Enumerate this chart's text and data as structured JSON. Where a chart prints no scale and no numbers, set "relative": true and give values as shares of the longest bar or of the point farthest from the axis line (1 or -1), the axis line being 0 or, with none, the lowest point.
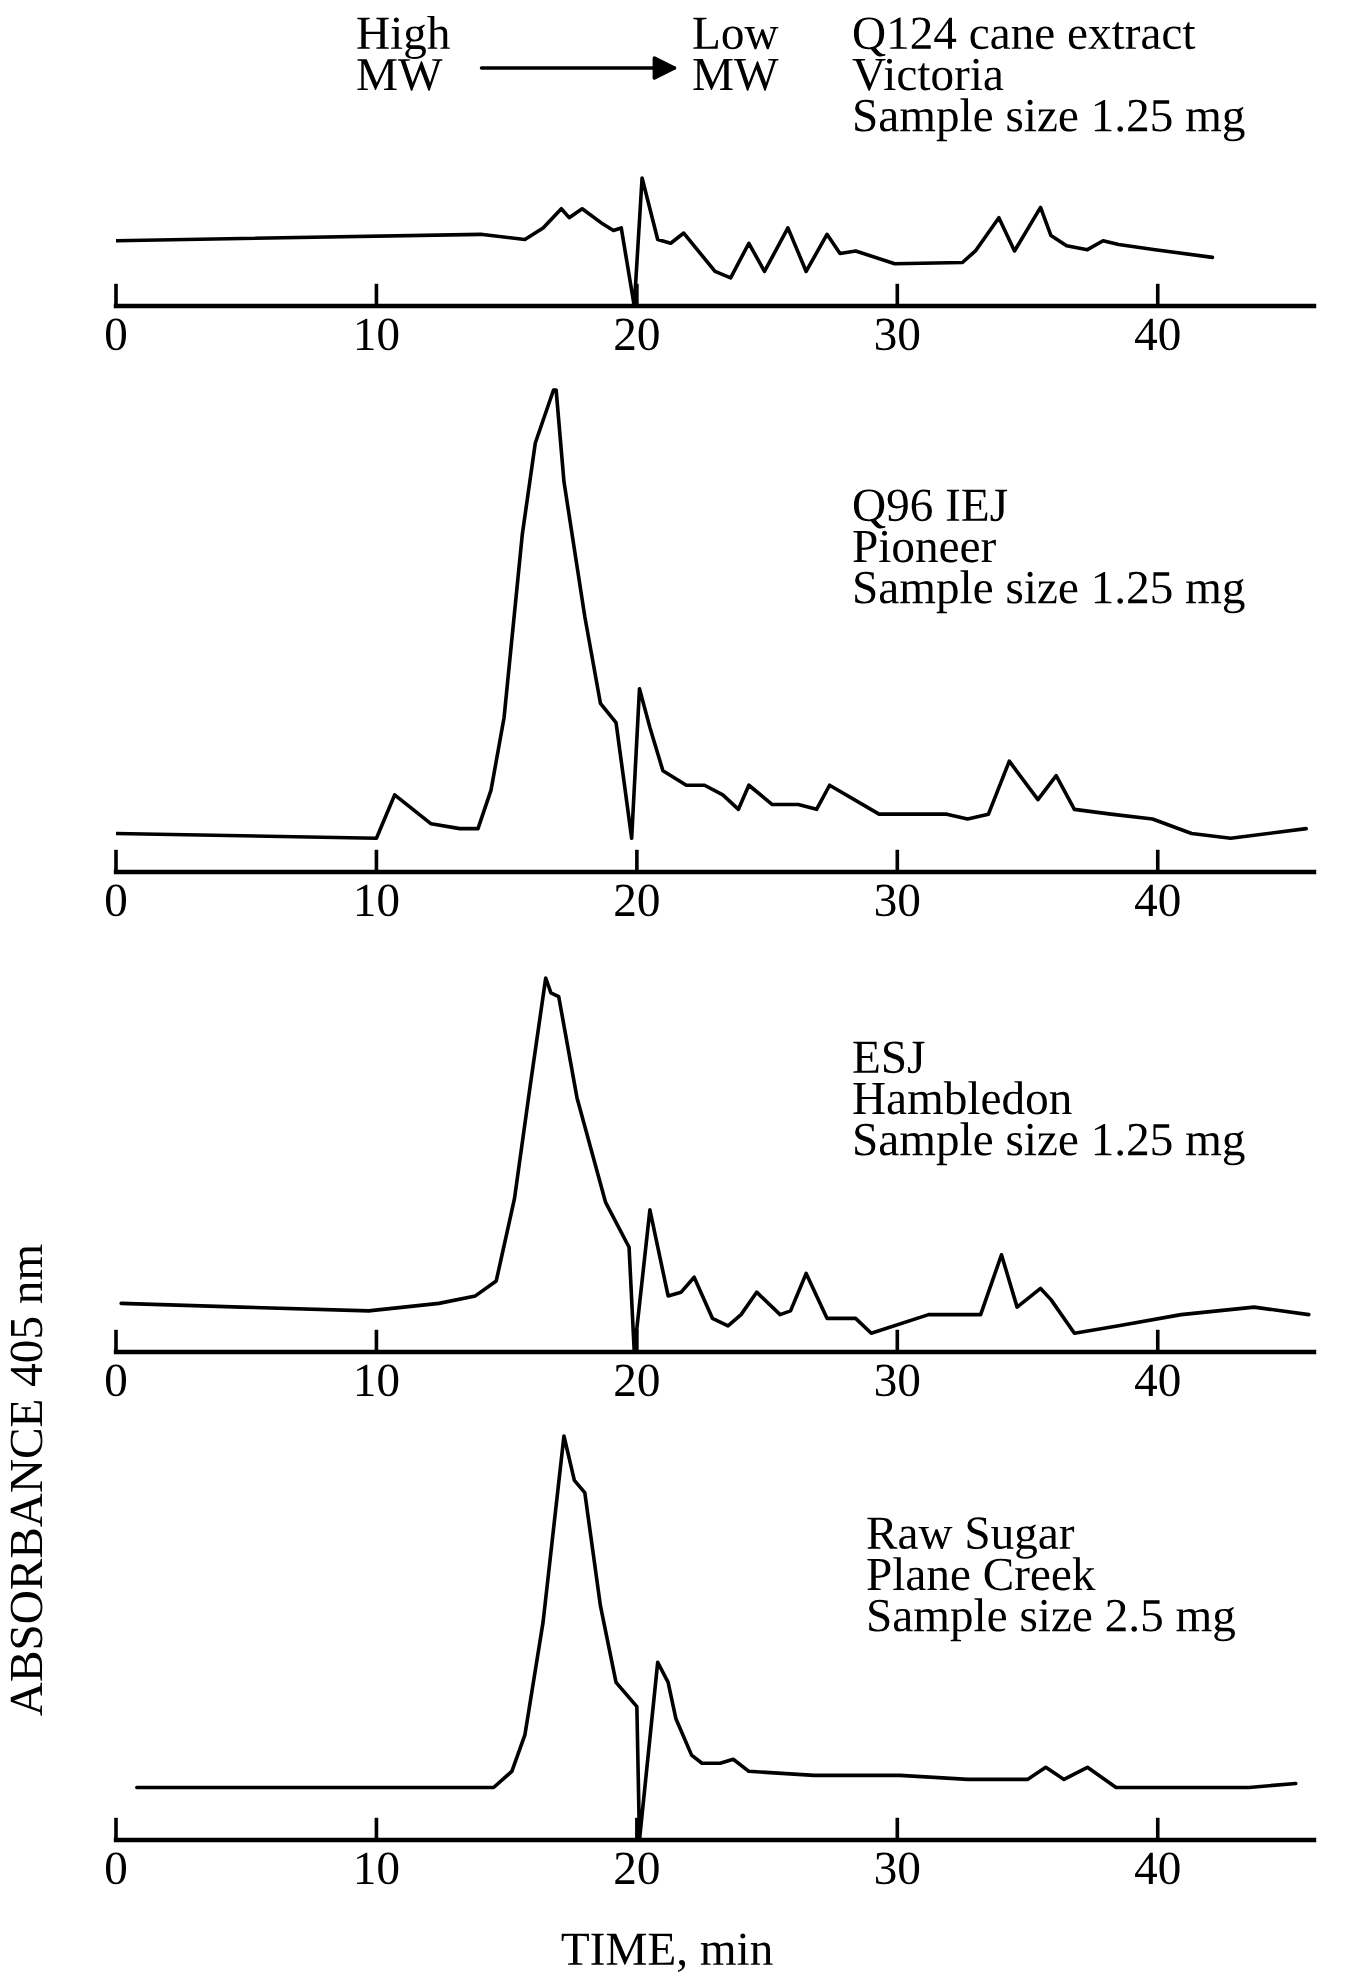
{
  "chart_data": [
    {
      "type": "line",
      "relative": true,
      "xlim": [
        0,
        46
      ],
      "xticks": [
        0,
        10,
        20,
        30,
        40
      ],
      "annotations": [
        "High\nMW",
        "Low\nMW",
        "Q124 cane extract\nVictoria\nSample size 1.25 mg"
      ],
      "series": [
        {
          "color": "#000000",
          "x": [
            0,
            14.0,
            15.7,
            16.4,
            17.1,
            17.4,
            17.9,
            18.7,
            19.1,
            19.4,
            19.9,
            20.2,
            20.8,
            21.3,
            21.8,
            23.0,
            23.6,
            24.3,
            24.9,
            25.8,
            26.5,
            27.3,
            27.8,
            28.4,
            29.9,
            32.5,
            33.0,
            33.9,
            34.5,
            35.5,
            35.9,
            36.5,
            37.3,
            37.9,
            38.5,
            39.9,
            42.1
          ],
          "values": [
            0.51,
            0.56,
            0.52,
            0.61,
            0.76,
            0.69,
            0.76,
            0.64,
            0.59,
            0.61,
            0,
            1.0,
            0.52,
            0.49,
            0.57,
            0.27,
            0.22,
            0.49,
            0.27,
            0.61,
            0.27,
            0.56,
            0.41,
            0.43,
            0.33,
            0.34,
            0.43,
            0.69,
            0.43,
            0.77,
            0.55,
            0.47,
            0.44,
            0.51,
            0.48,
            0.44,
            0.38
          ]
        }
      ]
    },
    {
      "type": "line",
      "relative": true,
      "xlim": [
        0,
        46
      ],
      "xticks": [
        0,
        10,
        20,
        30,
        40
      ],
      "annotations": [
        "Q96 IEJ\nPioneer\nSample size 1.25 mg"
      ],
      "series": [
        {
          "color": "#000000",
          "x": [
            0,
            10,
            10.7,
            12.1,
            13.2,
            13.9,
            14.4,
            14.9,
            15.6,
            16.1,
            16.8,
            16.9,
            17.2,
            18.0,
            18.6,
            19.2,
            19.8,
            20.1,
            20.5,
            21.0,
            21.9,
            22.6,
            23.3,
            23.9,
            24.3,
            25.2,
            26.2,
            26.9,
            27.4,
            29.3,
            30.5,
            31.9,
            32.7,
            33.5,
            34.3,
            35.4,
            36.1,
            36.8,
            38.2,
            39.8,
            41.3,
            42.8,
            45.7
          ],
          "values": [
            0.08,
            0.07,
            0.16,
            0.1,
            0.09,
            0.09,
            0.17,
            0.32,
            0.7,
            0.89,
            1.0,
            1.0,
            0.81,
            0.53,
            0.35,
            0.31,
            0.07,
            0.38,
            0.3,
            0.21,
            0.18,
            0.18,
            0.16,
            0.13,
            0.18,
            0.14,
            0.14,
            0.13,
            0.18,
            0.12,
            0.12,
            0.12,
            0.11,
            0.12,
            0.23,
            0.15,
            0.2,
            0.13,
            0.12,
            0.11,
            0.08,
            0.07,
            0.09
          ]
        }
      ]
    },
    {
      "type": "line",
      "relative": true,
      "xlim": [
        0,
        46
      ],
      "xticks": [
        0,
        10,
        20,
        30,
        40
      ],
      "annotations": [
        "ESJ\nHambledon\nSample size 1.25 mg"
      ],
      "series": [
        {
          "color": "#000000",
          "x": [
            0.2,
            4.8,
            9.7,
            12.4,
            13.8,
            14.6,
            15.3,
            15.9,
            16.5,
            16.7,
            17.0,
            17.7,
            18.8,
            19.7,
            19.9,
            20.5,
            21.2,
            21.7,
            22.2,
            22.9,
            23.5,
            24.0,
            24.6,
            25.5,
            25.9,
            26.5,
            27.3,
            28.4,
            29.0,
            31.2,
            33.2,
            34.0,
            34.6,
            35.5,
            35.9,
            36.8,
            38.5,
            40.9,
            43.7,
            45.8
          ],
          "values": [
            0.13,
            0.12,
            0.11,
            0.13,
            0.15,
            0.19,
            0.41,
            0.71,
            1.0,
            0.96,
            0.95,
            0.68,
            0.4,
            0.28,
            0,
            0.38,
            0.15,
            0.16,
            0.2,
            0.09,
            0.07,
            0.1,
            0.16,
            0.1,
            0.11,
            0.21,
            0.09,
            0.09,
            0.05,
            0.1,
            0.1,
            0.26,
            0.12,
            0.17,
            0.14,
            0.05,
            0.07,
            0.1,
            0.12,
            0.1
          ]
        }
      ]
    },
    {
      "type": "line",
      "relative": true,
      "xlim": [
        0,
        46
      ],
      "xticks": [
        0,
        10,
        20,
        30,
        40
      ],
      "xlabel": "TIME, min",
      "ylabel": "ABSORBANCE 405 nm",
      "annotations": [
        "Raw Sugar\nPlane Creek\nSample size 2.5 mg"
      ],
      "series": [
        {
          "color": "#000000",
          "x": [
            0.8,
            8.8,
            14.5,
            15.2,
            15.7,
            16.4,
            17.2,
            17.6,
            18.0,
            18.6,
            19.2,
            20.0,
            20.1,
            20.8,
            21.2,
            21.5,
            22.1,
            22.5,
            23.2,
            23.7,
            24.3,
            26.8,
            30.1,
            32.7,
            35.0,
            35.7,
            36.4,
            37.3,
            38.4,
            41.5,
            43.5,
            45.3
          ],
          "values": [
            0.13,
            0.13,
            0.13,
            0.17,
            0.26,
            0.54,
            1.0,
            0.89,
            0.86,
            0.58,
            0.39,
            0.33,
            0,
            0.44,
            0.39,
            0.3,
            0.21,
            0.19,
            0.19,
            0.2,
            0.17,
            0.16,
            0.16,
            0.15,
            0.15,
            0.18,
            0.15,
            0.18,
            0.13,
            0.13,
            0.13,
            0.14
          ]
        }
      ]
    }
  ]
}
